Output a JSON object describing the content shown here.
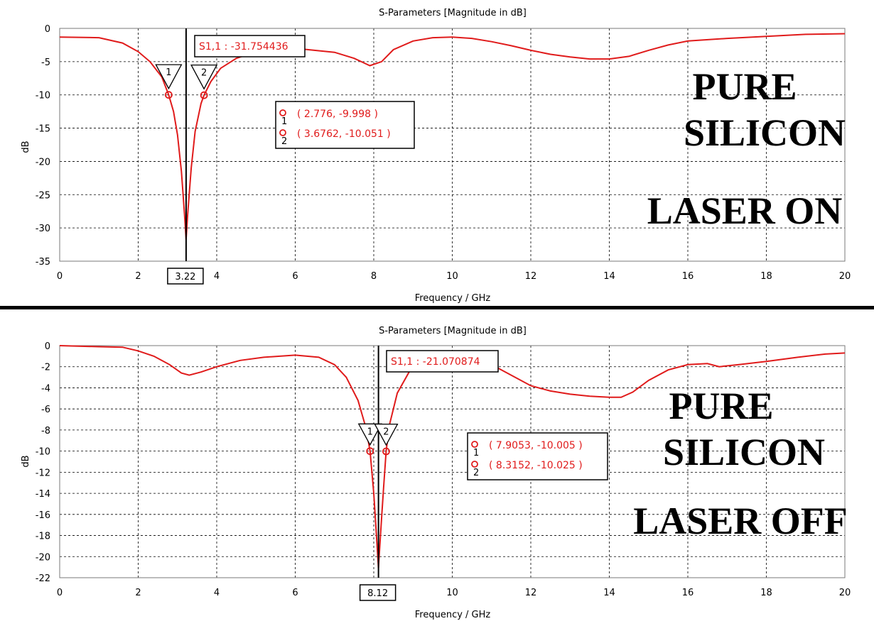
{
  "chart_data": [
    {
      "type": "line",
      "title": "S-Parameters [Magnitude in dB]",
      "xlabel": "Frequency / GHz",
      "ylabel": "dB",
      "xlim": [
        0,
        20
      ],
      "ylim": [
        -35,
        0
      ],
      "xticks": [
        "0",
        "2",
        "4",
        "6",
        "8",
        "10",
        "12",
        "14",
        "16",
        "18",
        "20"
      ],
      "yticks": [
        "0",
        "-5",
        "-10",
        "-15",
        "-20",
        "-25",
        "-30",
        "-35"
      ],
      "grid": true,
      "cursor": {
        "x": 3.22,
        "label": "3.22"
      },
      "cursor_readout": "S1,1 : -31.754436",
      "markers": [
        {
          "id": "1",
          "x": 2.776,
          "y": -9.998,
          "text": "( 2.776, -9.998 )"
        },
        {
          "id": "2",
          "x": 3.6762,
          "y": -10.051,
          "text": "( 3.6762, -10.051 )"
        }
      ],
      "annotation_lines": [
        "PURE",
        "SILICON",
        "LASER ON"
      ],
      "series": [
        {
          "color": "#e01b1b",
          "x": [
            0,
            1,
            1.6,
            2,
            2.3,
            2.6,
            2.776,
            2.9,
            3.0,
            3.1,
            3.18,
            3.22,
            3.26,
            3.35,
            3.45,
            3.6,
            3.6762,
            3.85,
            4.1,
            4.5,
            5,
            6,
            7,
            7.5,
            7.9,
            8.2,
            8.5,
            9,
            9.5,
            10,
            10.5,
            11,
            11.5,
            12,
            12.5,
            13,
            13.5,
            14,
            14.5,
            15,
            15.5,
            16,
            17,
            18,
            19,
            20
          ],
          "y": [
            -1.3,
            -1.4,
            -2.2,
            -3.5,
            -5,
            -7.3,
            -9.998,
            -12.5,
            -16,
            -21.5,
            -28,
            -31.75,
            -28,
            -21,
            -15.5,
            -11.3,
            -10.051,
            -8,
            -6,
            -4.5,
            -3.5,
            -3,
            -3.6,
            -4.5,
            -5.6,
            -5,
            -3.2,
            -1.9,
            -1.4,
            -1.3,
            -1.5,
            -2,
            -2.6,
            -3.3,
            -3.9,
            -4.3,
            -4.6,
            -4.6,
            -4.2,
            -3.3,
            -2.5,
            -1.9,
            -1.5,
            -1.2,
            -0.9,
            -0.8
          ]
        }
      ]
    },
    {
      "type": "line",
      "title": "S-Parameters [Magnitude in dB]",
      "xlabel": "Frequency / GHz",
      "ylabel": "dB",
      "xlim": [
        0,
        20
      ],
      "ylim": [
        -22,
        0
      ],
      "xticks": [
        "0",
        "2",
        "4",
        "6",
        "8",
        "10",
        "12",
        "14",
        "16",
        "18",
        "20"
      ],
      "yticks": [
        "0",
        "-2",
        "-4",
        "-6",
        "-8",
        "-10",
        "-12",
        "-14",
        "-16",
        "-18",
        "-20",
        "-22"
      ],
      "grid": true,
      "cursor": {
        "x": 8.12,
        "label": "8.12"
      },
      "cursor_readout": "S1,1 : -21.070874",
      "markers": [
        {
          "id": "1",
          "x": 7.9053,
          "y": -10.005,
          "text": "( 7.9053, -10.005 )"
        },
        {
          "id": "2",
          "x": 8.3152,
          "y": -10.025,
          "text": "( 8.3152, -10.025 )"
        }
      ],
      "annotation_lines": [
        "PURE",
        "SILICON",
        "LASER OFF"
      ],
      "series": [
        {
          "color": "#e01b1b",
          "x": [
            0,
            1,
            1.6,
            2,
            2.4,
            2.8,
            3.1,
            3.3,
            3.6,
            4,
            4.6,
            5.2,
            6,
            6.6,
            7,
            7.3,
            7.6,
            7.8,
            7.9053,
            8.0,
            8.06,
            8.12,
            8.18,
            8.25,
            8.3152,
            8.4,
            8.6,
            8.9,
            9.3,
            9.8,
            10.2,
            10.6,
            11,
            11.5,
            12,
            12.5,
            13,
            13.5,
            14,
            14.3,
            14.6,
            15,
            15.5,
            16,
            16.5,
            16.8,
            17.3,
            18,
            18.8,
            19.5,
            20
          ],
          "y": [
            0,
            -0.1,
            -0.15,
            -0.5,
            -1,
            -1.8,
            -2.6,
            -2.8,
            -2.5,
            -2,
            -1.4,
            -1.1,
            -0.9,
            -1.1,
            -1.8,
            -3,
            -5.2,
            -7.8,
            -10.005,
            -14,
            -17.5,
            -21.07,
            -17.5,
            -13.5,
            -10.025,
            -7.5,
            -4.5,
            -2.5,
            -1.5,
            -1.1,
            -1,
            -1.2,
            -1.8,
            -2.8,
            -3.8,
            -4.3,
            -4.6,
            -4.8,
            -4.9,
            -4.9,
            -4.4,
            -3.3,
            -2.3,
            -1.8,
            -1.7,
            -2,
            -1.8,
            -1.5,
            -1.1,
            -0.8,
            -0.7
          ]
        }
      ]
    }
  ]
}
